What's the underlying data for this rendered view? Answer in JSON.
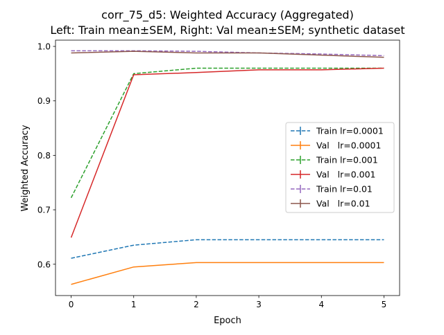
{
  "chart_data": {
    "type": "line",
    "title": "corr_75_d5: Weighted Accuracy (Aggregated)",
    "subtitle": "Left: Train mean±SEM, Right: Val mean±SEM; synthetic dataset",
    "xlabel": "Epoch",
    "ylabel": "Weighted Accuracy",
    "x": [
      0,
      1,
      2,
      3,
      4,
      5
    ],
    "xlim": [
      -0.25,
      5.25
    ],
    "ylim": [
      0.5425,
      1.0115
    ],
    "xticks": [
      "0",
      "1",
      "2",
      "3",
      "4",
      "5"
    ],
    "yticks": [
      "0.6",
      "0.7",
      "0.8",
      "0.9",
      "1.0"
    ],
    "ytick_values": [
      0.6,
      0.7,
      0.8,
      0.9,
      1.0
    ],
    "grid": false,
    "legend_placement": "center-right",
    "series": [
      {
        "name": "Train lr=0.0001",
        "color": "#1f77b4",
        "dashed": true,
        "values": [
          0.611,
          0.635,
          0.645,
          0.645,
          0.645,
          0.645
        ]
      },
      {
        "name": "Val   lr=0.0001",
        "color": "#ff7f0e",
        "dashed": false,
        "values": [
          0.563,
          0.595,
          0.603,
          0.603,
          0.603,
          0.603
        ]
      },
      {
        "name": "Train lr=0.001",
        "color": "#2ca02c",
        "dashed": true,
        "values": [
          0.722,
          0.95,
          0.96,
          0.96,
          0.96,
          0.96
        ]
      },
      {
        "name": "Val   lr=0.001",
        "color": "#d62728",
        "dashed": false,
        "values": [
          0.649,
          0.948,
          0.952,
          0.957,
          0.957,
          0.96
        ]
      },
      {
        "name": "Train lr=0.01",
        "color": "#9467bd",
        "dashed": true,
        "values": [
          0.992,
          0.992,
          0.991,
          0.988,
          0.986,
          0.983
        ]
      },
      {
        "name": "Val   lr=0.01",
        "color": "#8c564b",
        "dashed": false,
        "values": [
          0.988,
          0.991,
          0.988,
          0.988,
          0.984,
          0.98
        ]
      }
    ]
  }
}
